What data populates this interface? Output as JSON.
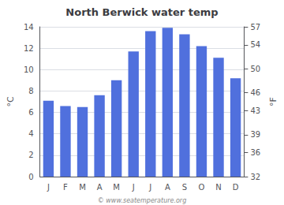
{
  "chart_data": {
    "type": "bar",
    "title": "North Berwick water temp",
    "categories": [
      "J",
      "F",
      "M",
      "A",
      "M",
      "J",
      "J",
      "A",
      "S",
      "O",
      "N",
      "D"
    ],
    "values": [
      7.1,
      6.6,
      6.5,
      7.6,
      9.0,
      11.7,
      13.6,
      13.9,
      13.3,
      12.2,
      11.1,
      9.2
    ],
    "ylabel": "°C",
    "y2label": "°F",
    "ylim": [
      0,
      14
    ],
    "yticks": [
      0,
      2,
      4,
      6,
      8,
      10,
      12,
      14
    ],
    "y2lim": [
      32,
      57
    ],
    "y2ticks": [
      32,
      36,
      39,
      43,
      46,
      50,
      54,
      57
    ],
    "grid": true,
    "annotations": [
      "© www.seatemperature.org"
    ]
  }
}
